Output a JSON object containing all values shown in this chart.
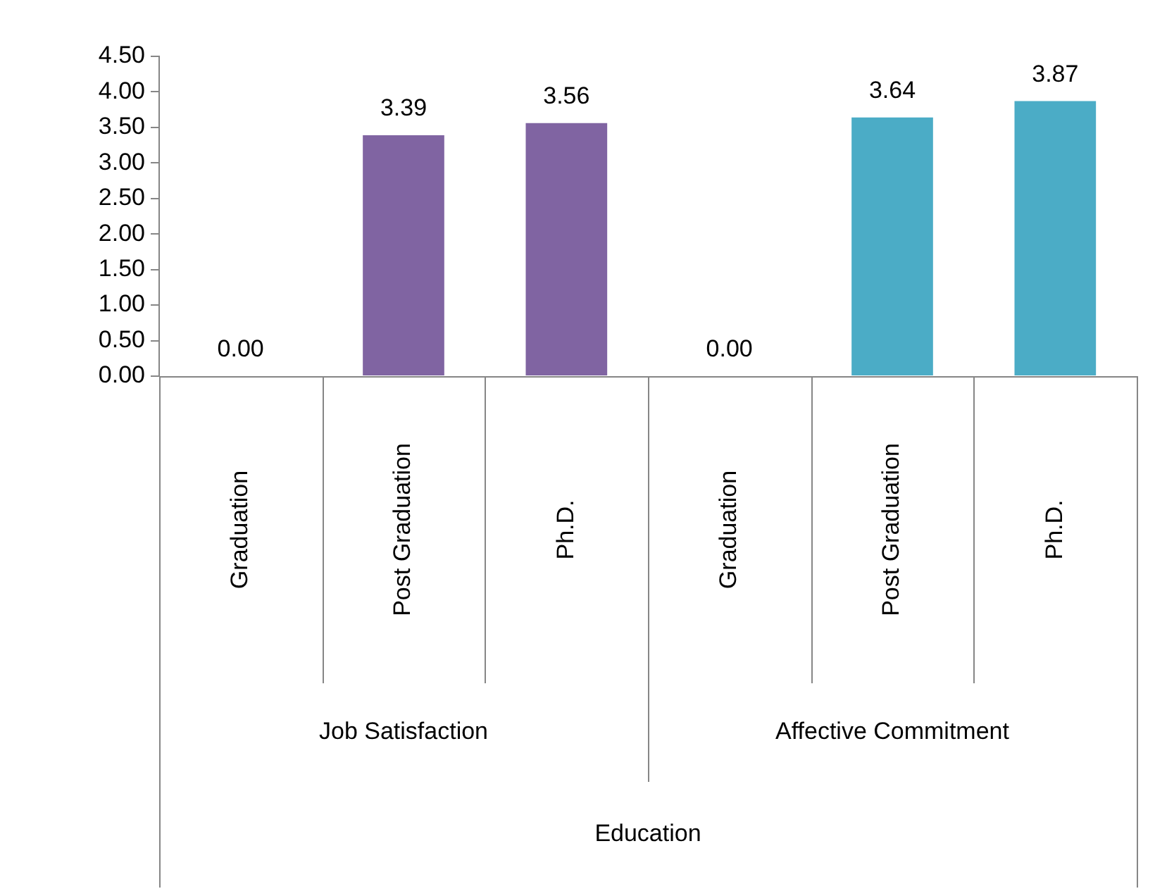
{
  "chart_data": {
    "type": "bar",
    "categories": [
      "Graduation",
      "Post Graduation",
      "Ph.D.",
      "Graduation",
      "Post Graduation",
      "Ph.D."
    ],
    "values": [
      0,
      3.39,
      3.56,
      0,
      3.64,
      3.87
    ],
    "colors": [
      "#8064a2",
      "#8064a2",
      "#8064a2",
      "#4bacc6",
      "#4bacc6",
      "#4bacc6"
    ],
    "value_labels": [
      "0.00",
      "3.39",
      "3.56",
      "0.00",
      "3.64",
      "3.87"
    ],
    "annotations": [
      "Job Satisfaction",
      "Affective Commitment",
      "Education"
    ],
    "ylim": [
      0,
      4.5
    ],
    "yticks": [
      {
        "value": 0,
        "label": "0.00"
      },
      {
        "value": 0.5,
        "label": "0.50"
      },
      {
        "value": 1,
        "label": "1.00"
      },
      {
        "value": 1.5,
        "label": "1.50"
      },
      {
        "value": 2,
        "label": "2.00"
      },
      {
        "value": 2.5,
        "label": "2.50"
      },
      {
        "value": 3,
        "label": "3.00"
      },
      {
        "value": 3.5,
        "label": "3.50"
      },
      {
        "value": 4,
        "label": "4.00"
      },
      {
        "value": 4.5,
        "label": "4.50"
      }
    ],
    "grid": false,
    "legend": false
  }
}
